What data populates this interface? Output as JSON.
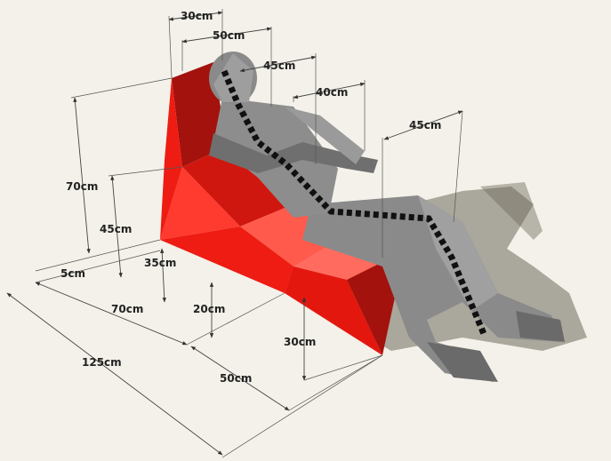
{
  "colors": {
    "background": "#f3f1e9",
    "chair": "#ee1c13",
    "chair_dark": "#a3120c",
    "chair_light": "#ff6b5e",
    "figure": "#8a8a8a",
    "figure_dark": "#5c5c5c",
    "shadow": "#6e6a5c",
    "spine": "#111111"
  },
  "dimensions": {
    "top_30": "30cm",
    "top_50": "50cm",
    "top_45": "45cm",
    "top_40": "40cm",
    "right_45": "45cm",
    "left_70": "70cm",
    "left_45": "45cm",
    "left_5": "5cm",
    "left_35": "35cm",
    "base_70": "70cm",
    "base_125": "125cm",
    "mid_20": "20cm",
    "mid_30": "30cm",
    "base_50": "50cm"
  }
}
